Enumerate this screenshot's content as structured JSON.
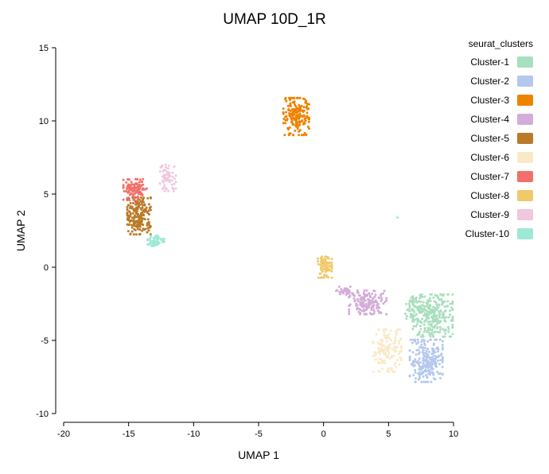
{
  "chart_data": {
    "type": "scatter",
    "title": "UMAP 10D_1R",
    "xlabel": "UMAP 1",
    "ylabel": "UMAP 2",
    "xlim": [
      -20,
      10
    ],
    "ylim": [
      -10,
      15
    ],
    "xticks": [
      -20,
      -15,
      -10,
      -5,
      0,
      5,
      10
    ],
    "yticks": [
      -10,
      -5,
      0,
      5,
      10,
      15
    ],
    "grid": false,
    "legend_title": "seurat_clusters",
    "legend_position": "right",
    "series": [
      {
        "name": "Cluster-1",
        "color": "#a8dfbd",
        "clusters": [
          {
            "cx": 8.4,
            "cy": -3.3,
            "rx": 1.7,
            "ry": 1.6,
            "n": 280
          },
          {
            "cx": 6.8,
            "cy": -2.8,
            "rx": 0.6,
            "ry": 0.8,
            "n": 40
          }
        ]
      },
      {
        "name": "Cluster-2",
        "color": "#b4c8ee",
        "clusters": [
          {
            "cx": 7.9,
            "cy": -6.4,
            "rx": 1.4,
            "ry": 1.6,
            "n": 230
          }
        ]
      },
      {
        "name": "Cluster-3",
        "color": "#ee8301",
        "clusters": [
          {
            "cx": -2.1,
            "cy": 10.3,
            "rx": 1.1,
            "ry": 1.4,
            "n": 190
          }
        ]
      },
      {
        "name": "Cluster-4",
        "color": "#d4acd9",
        "clusters": [
          {
            "cx": 3.4,
            "cy": -2.4,
            "rx": 1.6,
            "ry": 0.9,
            "n": 160
          },
          {
            "cx": 1.6,
            "cy": -1.6,
            "rx": 0.7,
            "ry": 0.3,
            "n": 25
          }
        ]
      },
      {
        "name": "Cluster-5",
        "color": "#bb7a28",
        "clusters": [
          {
            "cx": -14.2,
            "cy": 3.5,
            "rx": 1.0,
            "ry": 1.4,
            "n": 210
          }
        ]
      },
      {
        "name": "Cluster-6",
        "color": "#f9e9c7",
        "clusters": [
          {
            "cx": 4.9,
            "cy": -5.7,
            "rx": 1.2,
            "ry": 1.6,
            "n": 150
          }
        ]
      },
      {
        "name": "Cluster-7",
        "color": "#f2706b",
        "clusters": [
          {
            "cx": -14.5,
            "cy": 5.3,
            "rx": 1.0,
            "ry": 0.8,
            "n": 110
          }
        ]
      },
      {
        "name": "Cluster-8",
        "color": "#f0c96b",
        "clusters": [
          {
            "cx": 0.1,
            "cy": 0.0,
            "rx": 0.6,
            "ry": 0.8,
            "n": 80
          }
        ]
      },
      {
        "name": "Cluster-9",
        "color": "#efc7de",
        "clusters": [
          {
            "cx": -12.0,
            "cy": 6.1,
            "rx": 0.7,
            "ry": 1.0,
            "n": 60
          }
        ]
      },
      {
        "name": "Cluster-10",
        "color": "#9ee8d6",
        "clusters": [
          {
            "cx": -12.9,
            "cy": 1.8,
            "rx": 0.7,
            "ry": 0.4,
            "n": 60
          },
          {
            "cx": 5.7,
            "cy": 3.4,
            "rx": 0.02,
            "ry": 0.02,
            "n": 1
          }
        ]
      }
    ]
  }
}
